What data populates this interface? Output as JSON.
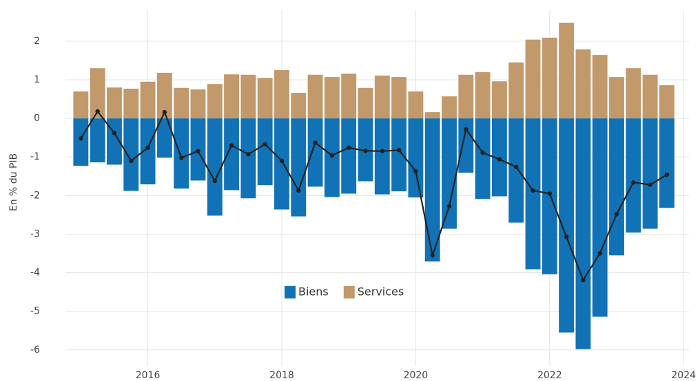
{
  "chart_data": {
    "type": "bar",
    "y_label": "En % du PIB",
    "x": [
      2015,
      2015.25,
      2015.5,
      2015.75,
      2016,
      2016.25,
      2016.5,
      2016.75,
      2017,
      2017.25,
      2017.5,
      2017.75,
      2018,
      2018.25,
      2018.5,
      2018.75,
      2019,
      2019.25,
      2019.5,
      2019.75,
      2020,
      2020.25,
      2020.5,
      2020.75,
      2021,
      2021.25,
      2021.5,
      2021.75,
      2022,
      2022.25,
      2022.5,
      2022.75,
      2023,
      2023.25,
      2023.5,
      2023.75
    ],
    "series": [
      {
        "name": "Biens",
        "color": "#1172b5",
        "values": [
          -1.23,
          -1.14,
          -1.2,
          -1.88,
          -1.71,
          -1.02,
          -1.82,
          -1.61,
          -2.52,
          -1.86,
          -2.07,
          -1.73,
          -2.36,
          -2.54,
          -1.77,
          -2.04,
          -1.95,
          -1.63,
          -1.97,
          -1.89,
          -2.05,
          -3.71,
          -2.86,
          -1.41,
          -2.09,
          -2.02,
          -2.7,
          -3.91,
          -4.04,
          -5.55,
          -5.98,
          -5.14,
          -3.55,
          -2.96,
          -2.86,
          -2.32
        ]
      },
      {
        "name": "Services",
        "color": "#c1996a",
        "values": [
          0.7,
          1.3,
          0.8,
          0.77,
          0.95,
          1.18,
          0.79,
          0.75,
          0.89,
          1.14,
          1.13,
          1.05,
          1.25,
          0.66,
          1.13,
          1.07,
          1.16,
          0.79,
          1.11,
          1.07,
          0.7,
          0.16,
          0.57,
          1.13,
          1.2,
          0.96,
          1.45,
          2.04,
          2.09,
          2.48,
          1.79,
          1.64,
          1.07,
          1.3,
          1.13,
          0.86
        ]
      }
    ],
    "line": {
      "color": "#222222",
      "values": [
        -0.52,
        0.18,
        -0.38,
        -1.1,
        -0.76,
        0.16,
        -1.02,
        -0.85,
        -1.62,
        -0.7,
        -0.93,
        -0.67,
        -1.1,
        -1.87,
        -0.63,
        -0.96,
        -0.76,
        -0.84,
        -0.85,
        -0.82,
        -1.37,
        -3.55,
        -2.28,
        -0.28,
        -0.89,
        -1.06,
        -1.26,
        -1.87,
        -1.95,
        -3.07,
        -4.19,
        -3.5,
        -2.48,
        -1.66,
        -1.72,
        -1.46
      ]
    },
    "xlim": [
      2014.77,
      2024.08
    ],
    "xticks": [
      2016,
      2018,
      2020,
      2022,
      2024
    ],
    "ylim": [
      -6.2,
      2.8
    ],
    "yticks": [
      -6,
      -5,
      -4,
      -3,
      -2,
      -1,
      0,
      1,
      2
    ],
    "grid": true
  }
}
